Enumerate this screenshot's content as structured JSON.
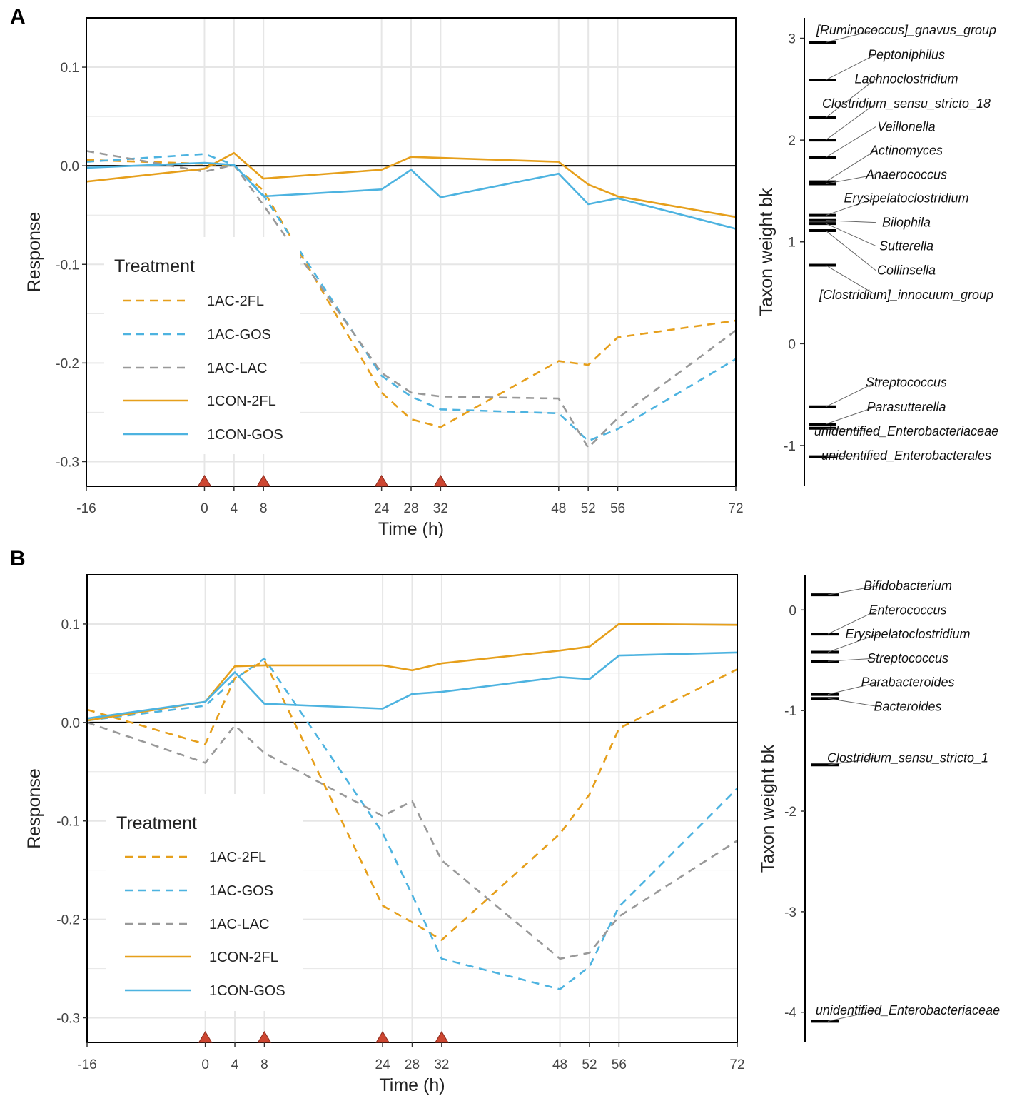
{
  "figure": {
    "colors": {
      "1AC-2FL": "#E69F1B",
      "1AC-GOS": "#4DB3E0",
      "1AC-LAC": "#999999",
      "1CON-2FL": "#E69F1B",
      "1CON-GOS": "#4DB3E0",
      "grid": "#e6e6e6",
      "marker": "#CD4631",
      "axis": "#000000"
    },
    "dashed_series": [
      "1AC-2FL",
      "1AC-GOS",
      "1AC-LAC"
    ]
  },
  "chart_data": [
    {
      "type": "line",
      "panel": "A",
      "xlabel": "Time (h)",
      "ylabel": "Response",
      "xlim": [
        -16,
        72
      ],
      "ylim": [
        -0.325,
        0.15
      ],
      "x_ticks": [
        -16,
        0,
        4,
        8,
        24,
        28,
        32,
        48,
        52,
        56,
        72
      ],
      "y_ticks": [
        0.1,
        0.0,
        -0.1,
        -0.2,
        -0.3
      ],
      "y_tick_labels": [
        "0.1",
        "0.0",
        "-0.1",
        "-0.2",
        "-0.3"
      ],
      "hline": 0,
      "markers_x": [
        0,
        8,
        24,
        32
      ],
      "legend": {
        "title": "Treatment",
        "position": "bottom-left"
      },
      "series": [
        {
          "name": "1AC-2FL",
          "x": [
            -16,
            0,
            4,
            8,
            24,
            28,
            32,
            48,
            52,
            56,
            72
          ],
          "values": [
            0.006,
            0.002,
            0.0,
            -0.025,
            -0.23,
            -0.257,
            -0.265,
            -0.198,
            -0.202,
            -0.174,
            -0.157
          ]
        },
        {
          "name": "1AC-GOS",
          "x": [
            -16,
            0,
            4,
            8,
            24,
            28,
            32,
            48,
            52,
            56,
            72
          ],
          "values": [
            0.004,
            0.012,
            0.001,
            -0.03,
            -0.213,
            -0.234,
            -0.247,
            -0.251,
            -0.279,
            -0.267,
            -0.196
          ]
        },
        {
          "name": "1AC-LAC",
          "x": [
            -16,
            0,
            4,
            8,
            24,
            28,
            32,
            48,
            52,
            56,
            72
          ],
          "values": [
            0.015,
            -0.006,
            0.001,
            -0.04,
            -0.21,
            -0.23,
            -0.234,
            -0.236,
            -0.286,
            -0.256,
            -0.167
          ]
        },
        {
          "name": "1CON-2FL",
          "x": [
            -16,
            0,
            4,
            8,
            24,
            28,
            32,
            48,
            52,
            56,
            72
          ],
          "values": [
            -0.016,
            -0.003,
            0.013,
            -0.013,
            -0.004,
            0.009,
            0.008,
            0.004,
            -0.019,
            -0.031,
            -0.052
          ]
        },
        {
          "name": "1CON-GOS",
          "x": [
            -16,
            0,
            4,
            8,
            24,
            28,
            32,
            48,
            52,
            56,
            72
          ],
          "values": [
            -0.002,
            0.003,
            0.001,
            -0.031,
            -0.024,
            -0.004,
            -0.032,
            -0.008,
            -0.039,
            -0.033,
            -0.064
          ]
        }
      ]
    },
    {
      "type": "line",
      "panel": "B",
      "xlabel": "Time (h)",
      "ylabel": "Response",
      "xlim": [
        -16,
        72
      ],
      "ylim": [
        -0.325,
        0.15
      ],
      "x_ticks": [
        -16,
        0,
        4,
        8,
        24,
        28,
        32,
        48,
        52,
        56,
        72
      ],
      "y_ticks": [
        0.1,
        0.0,
        -0.1,
        -0.2,
        -0.3
      ],
      "y_tick_labels": [
        "0.1",
        "0.0",
        "-0.1",
        "-0.2",
        "-0.3"
      ],
      "hline": 0,
      "markers_x": [
        0,
        8,
        24,
        32
      ],
      "legend": {
        "title": "Treatment",
        "position": "bottom-left"
      },
      "series": [
        {
          "name": "1AC-2FL",
          "x": [
            -16,
            0,
            4,
            8,
            24,
            28,
            32,
            48,
            52,
            56,
            72
          ],
          "values": [
            0.013,
            -0.022,
            0.045,
            0.063,
            -0.186,
            -0.203,
            -0.221,
            -0.113,
            -0.073,
            -0.006,
            0.054
          ]
        },
        {
          "name": "1AC-GOS",
          "x": [
            -16,
            0,
            4,
            8,
            24,
            28,
            32,
            48,
            52,
            56,
            72
          ],
          "values": [
            0.002,
            0.017,
            0.044,
            0.065,
            -0.112,
            -0.175,
            -0.24,
            -0.271,
            -0.248,
            -0.187,
            -0.067
          ]
        },
        {
          "name": "1AC-LAC",
          "x": [
            -16,
            0,
            4,
            8,
            24,
            28,
            32,
            48,
            52,
            56,
            72
          ],
          "values": [
            0.0,
            -0.041,
            -0.003,
            -0.031,
            -0.095,
            -0.08,
            -0.14,
            -0.24,
            -0.234,
            -0.197,
            -0.12
          ]
        },
        {
          "name": "1CON-2FL",
          "x": [
            -16,
            0,
            4,
            8,
            24,
            28,
            32,
            48,
            52,
            56,
            72
          ],
          "values": [
            0.002,
            0.021,
            0.057,
            0.058,
            0.058,
            0.053,
            0.06,
            0.073,
            0.077,
            0.1,
            0.099
          ]
        },
        {
          "name": "1CON-GOS",
          "x": [
            -16,
            0,
            4,
            8,
            24,
            28,
            32,
            48,
            52,
            56,
            72
          ],
          "values": [
            0.004,
            0.021,
            0.051,
            0.019,
            0.014,
            0.029,
            0.031,
            0.046,
            0.044,
            0.068,
            0.071
          ]
        }
      ]
    },
    {
      "type": "scatter",
      "panel": "A-taxa",
      "ylabel": "Taxon weight bk",
      "ylim": [
        -1.4,
        3.2
      ],
      "y_ticks": [
        3,
        2,
        1,
        0,
        -1
      ],
      "taxa": [
        {
          "name": "[Ruminococcus]_gnavus_group",
          "weight": 2.96,
          "label_y": 3.08
        },
        {
          "name": "Peptoniphilus",
          "weight": 2.59,
          "label_y": 2.84
        },
        {
          "name": "Lachnoclostridium",
          "weight": 2.22,
          "label_y": 2.6
        },
        {
          "name": "Clostridium_sensu_stricto_18",
          "weight": 2.0,
          "label_y": 2.36
        },
        {
          "name": "Veillonella",
          "weight": 1.83,
          "label_y": 2.13
        },
        {
          "name": "Actinomyces",
          "weight": 1.59,
          "label_y": 1.9
        },
        {
          "name": "Anaerococcus",
          "weight": 1.57,
          "label_y": 1.66
        },
        {
          "name": "Erysipelatoclostridium",
          "weight": 1.26,
          "label_y": 1.43
        },
        {
          "name": "Bilophila",
          "weight": 1.21,
          "label_y": 1.19
        },
        {
          "name": "Sutterella",
          "weight": 1.18,
          "label_y": 0.96
        },
        {
          "name": "Collinsella",
          "weight": 1.11,
          "label_y": 0.72
        },
        {
          "name": "[Clostridium]_innocuum_group",
          "weight": 0.77,
          "label_y": 0.48
        },
        {
          "name": "Streptococcus",
          "weight": -0.62,
          "label_y": -0.38
        },
        {
          "name": "Parasutterella",
          "weight": -0.79,
          "label_y": -0.62
        },
        {
          "name": "unidentified_Enterobacteriaceae",
          "weight": -0.83,
          "label_y": -0.86
        },
        {
          "name": "unidentified_Enterobacterales",
          "weight": -1.11,
          "label_y": -1.1
        }
      ]
    },
    {
      "type": "scatter",
      "panel": "B-taxa",
      "ylabel": "Taxon weight bk",
      "ylim": [
        -4.3,
        0.35
      ],
      "y_ticks": [
        0,
        -1,
        -2,
        -3,
        -4
      ],
      "taxa": [
        {
          "name": "Bifidobacterium",
          "weight": 0.15,
          "label_y": 0.24
        },
        {
          "name": "Enterococcus",
          "weight": -0.24,
          "label_y": 0.0
        },
        {
          "name": "Erysipelatoclostridium",
          "weight": -0.42,
          "label_y": -0.24
        },
        {
          "name": "Streptococcus",
          "weight": -0.51,
          "label_y": -0.48
        },
        {
          "name": "Parabacteroides",
          "weight": -0.84,
          "label_y": -0.72
        },
        {
          "name": "Bacteroides",
          "weight": -0.88,
          "label_y": -0.96
        },
        {
          "name": "Clostridium_sensu_stricto_1",
          "weight": -1.54,
          "label_y": -1.47
        },
        {
          "name": "unidentified_Enterobacteriaceae",
          "weight": -4.09,
          "label_y": -3.98
        }
      ]
    }
  ],
  "panel_labels": [
    "A",
    "B"
  ]
}
